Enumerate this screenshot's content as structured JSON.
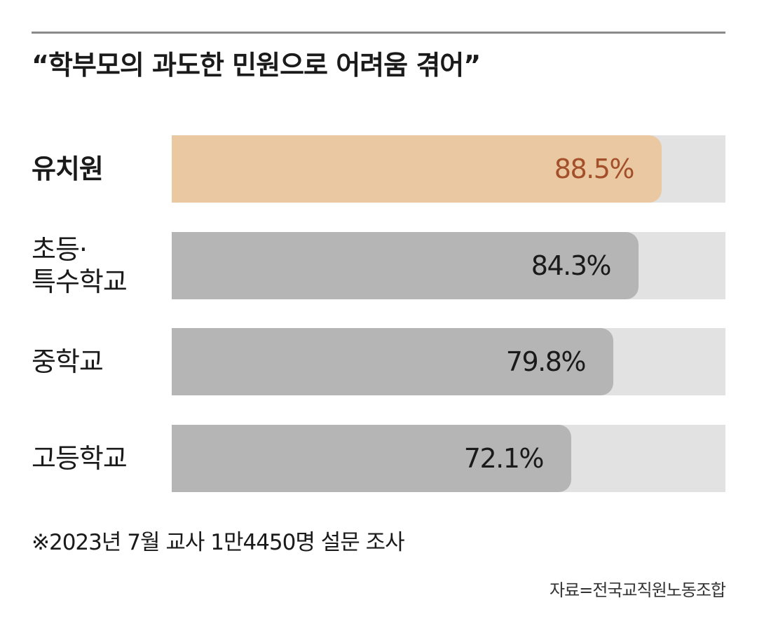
{
  "title": "“학부모의 과도한 민원으로 어려움 겪어”",
  "chart_data": {
    "type": "bar",
    "orientation": "horizontal",
    "title": "“학부모의 과도한 민원으로 어려움 겪어”",
    "categories": [
      "유치원",
      "초등·\n특수학교",
      "중학교",
      "고등학교"
    ],
    "values": [
      88.5,
      84.3,
      79.8,
      72.1
    ],
    "value_labels": [
      "88.5%",
      "84.3%",
      "79.8%",
      "72.1%"
    ],
    "unit": "%",
    "xlim": [
      0,
      100
    ],
    "grid": false,
    "legend": "none",
    "highlight_index": 0
  },
  "colors": {
    "highlight_fill": "#eac9a2",
    "highlight_text": "#a3502a",
    "bar_fill": "#b5b5b5",
    "bar_text": "#1a1a1a",
    "track": "#e2e2e2"
  },
  "footnote": "※2023년 7월 교사 1만4450명 설문 조사",
  "source": "자료=전국교직원노동조합"
}
